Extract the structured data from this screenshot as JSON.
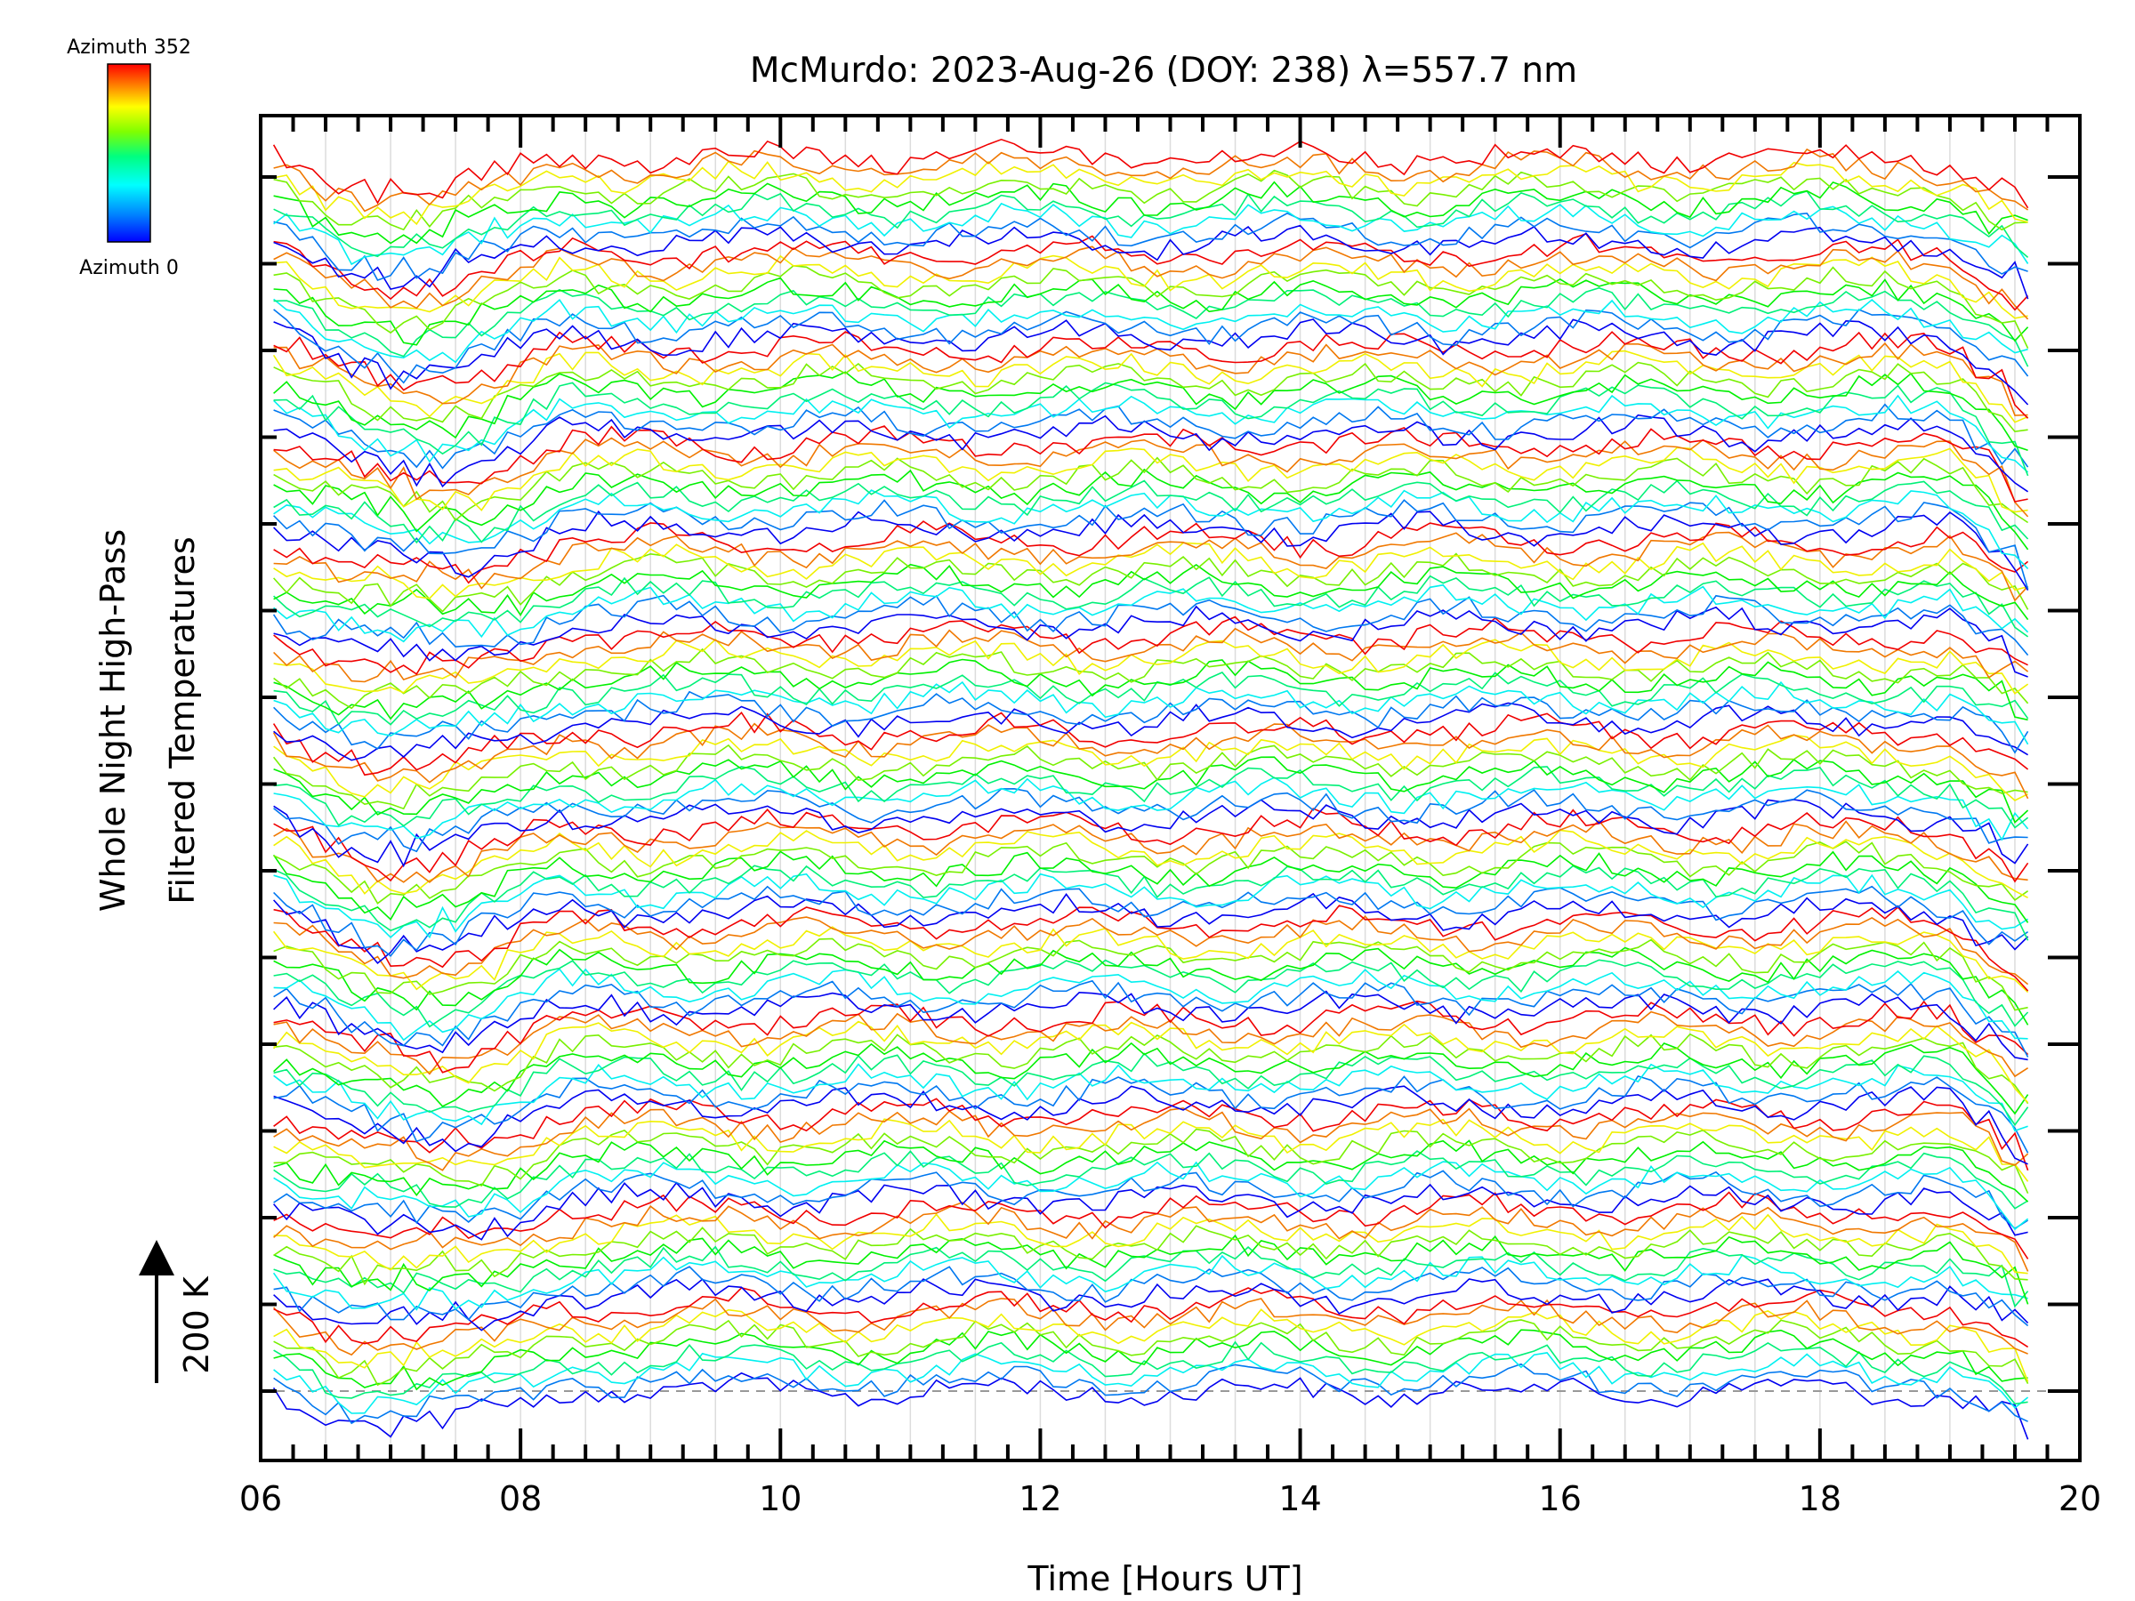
{
  "chart_data": {
    "type": "line",
    "title": "McMurdo: 2023-Aug-26 (DOY: 238) λ=557.7 nm",
    "xlabel": "Time [Hours UT]",
    "ylabel_line1": "Whole Night High-Pass",
    "ylabel_line2": "Filtered Temperatures",
    "xlim": [
      6,
      20
    ],
    "x_ticks": [
      "06",
      "08",
      "10",
      "12",
      "14",
      "16",
      "18",
      "20"
    ],
    "x_tick_values": [
      6,
      8,
      10,
      12,
      14,
      16,
      18,
      20
    ],
    "x_range_data": [
      6.1,
      19.6
    ],
    "x_step_hours": 0.1,
    "scale_bar": {
      "label": "200 K",
      "value": 200,
      "unit": "K"
    },
    "legend": {
      "type": "colorbar",
      "top_label": "Azimuth 352",
      "bottom_label": "Azimuth 0",
      "azimuth_min": 0,
      "azimuth_max": 352,
      "colors": [
        "#0000ff",
        "#0080ff",
        "#00ffff",
        "#00ff80",
        "#80ff00",
        "#ffff00",
        "#ff8000",
        "#ff0000"
      ]
    },
    "y_offset_groups": 13,
    "lines_per_group": 9,
    "offset_per_line_K": 10.8,
    "series_note": "Filtered temperature traces, one per azimuth, stacked with constant offsets; azimuth encoded by color.",
    "gridlines": true,
    "baseline_dashed": true
  }
}
